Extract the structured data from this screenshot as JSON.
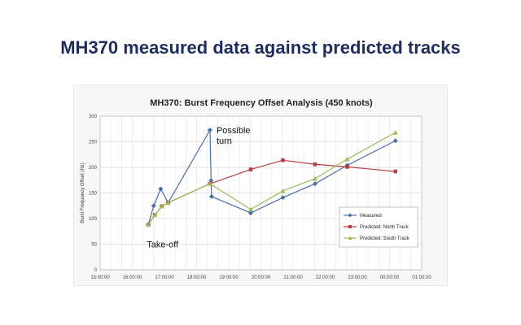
{
  "slide": {
    "title": "MH370 measured data against predicted tracks"
  },
  "chart_data": {
    "type": "line",
    "title": "MH370: Burst Frequency Offset Analysis (450 knots)",
    "ylabel": "Burst Frequency Offset (Hz)",
    "xlabel": "",
    "ylim": [
      0,
      300
    ],
    "yticks": [
      0,
      50,
      100,
      150,
      200,
      250,
      300
    ],
    "xlim_hours": [
      15,
      25
    ],
    "xticks": [
      "15:00:00",
      "16:00:00",
      "17:00:00",
      "18:00:00",
      "19:00:00",
      "20:00:00",
      "21:00:00",
      "22:00:00",
      "23:00:00",
      "00:00:00",
      "01:00:00"
    ],
    "grid": true,
    "legend_position": "bottom-right",
    "series": [
      {
        "name": "Measured",
        "color": "#4a6fa5",
        "marker": "diamond",
        "points": [
          {
            "x": "16:30",
            "y": 88
          },
          {
            "x": "16:40",
            "y": 125
          },
          {
            "x": "16:53",
            "y": 158
          },
          {
            "x": "17:07",
            "y": 131
          },
          {
            "x": "18:25",
            "y": 273
          },
          {
            "x": "18:27",
            "y": 174
          },
          {
            "x": "18:28",
            "y": 143
          },
          {
            "x": "19:41",
            "y": 111
          },
          {
            "x": "20:41",
            "y": 141
          },
          {
            "x": "21:41",
            "y": 168
          },
          {
            "x": "22:41",
            "y": 204
          },
          {
            "x": "00:11",
            "y": 252
          }
        ]
      },
      {
        "name": "Predicted: North Track",
        "color": "#b5403f",
        "marker": "square",
        "points": [
          {
            "x": "16:30",
            "y": 88
          },
          {
            "x": "16:42",
            "y": 107
          },
          {
            "x": "16:55",
            "y": 124
          },
          {
            "x": "17:07",
            "y": 131
          },
          {
            "x": "18:25",
            "y": 168
          },
          {
            "x": "19:41",
            "y": 196
          },
          {
            "x": "20:41",
            "y": 214
          },
          {
            "x": "21:41",
            "y": 206
          },
          {
            "x": "22:41",
            "y": 201
          },
          {
            "x": "00:11",
            "y": 192
          }
        ]
      },
      {
        "name": "Predicted: South Track",
        "color": "#9bbb59",
        "marker": "triangle",
        "points": [
          {
            "x": "16:30",
            "y": 88
          },
          {
            "x": "16:42",
            "y": 107
          },
          {
            "x": "16:55",
            "y": 124
          },
          {
            "x": "17:07",
            "y": 131
          },
          {
            "x": "18:25",
            "y": 168
          },
          {
            "x": "19:41",
            "y": 118
          },
          {
            "x": "20:41",
            "y": 154
          },
          {
            "x": "21:41",
            "y": 178
          },
          {
            "x": "22:41",
            "y": 216
          },
          {
            "x": "00:11",
            "y": 268
          }
        ]
      }
    ],
    "annotations": [
      {
        "text": "Possible turn",
        "x": "18:25",
        "y": 273
      },
      {
        "text": "Take-off",
        "x": "16:30",
        "y": 88
      }
    ]
  }
}
